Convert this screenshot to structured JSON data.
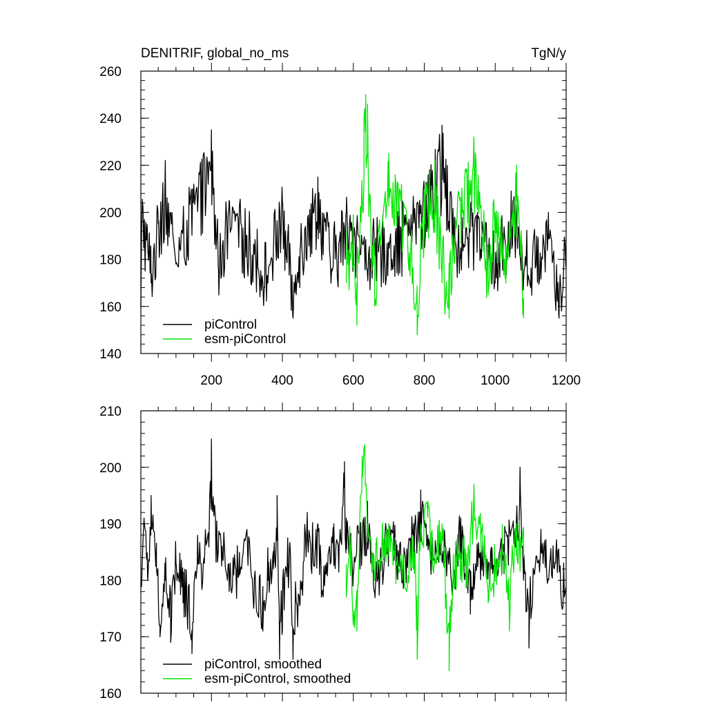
{
  "colors": {
    "picontrol": "#000000",
    "esm_picontrol": "#00e600"
  },
  "chart_data": [
    {
      "type": "line",
      "title": "DENITRIF, global_no_ms",
      "units": "TgN/y",
      "xlim": [
        1,
        1200
      ],
      "ylim": [
        140,
        260
      ],
      "x_ticks": [
        200,
        400,
        600,
        800,
        1000,
        1200
      ],
      "y_ticks": [
        140,
        160,
        180,
        200,
        220,
        240,
        260
      ],
      "legend_position": "bottom-left",
      "series": [
        {
          "name": "piControl",
          "color": "#000000",
          "x_range": [
            1,
            1200
          ],
          "mean": 182,
          "anchors": [
            [
              1,
              160
            ],
            [
              5,
              205
            ],
            [
              30,
              170
            ],
            [
              50,
              195
            ],
            [
              70,
              222
            ],
            [
              100,
              178
            ],
            [
              150,
              212
            ],
            [
              200,
              235
            ],
            [
              220,
              175
            ],
            [
              250,
              205
            ],
            [
              300,
              190
            ],
            [
              350,
              168
            ],
            [
              400,
              205
            ],
            [
              430,
              155
            ],
            [
              450,
              185
            ],
            [
              500,
              215
            ],
            [
              540,
              175
            ],
            [
              580,
              200
            ],
            [
              650,
              180
            ],
            [
              750,
              195
            ],
            [
              800,
              210
            ],
            [
              850,
              237
            ],
            [
              900,
              180
            ],
            [
              950,
              200
            ],
            [
              1000,
              170
            ],
            [
              1050,
              205
            ],
            [
              1100,
              168
            ],
            [
              1150,
              200
            ],
            [
              1180,
              155
            ],
            [
              1200,
              178
            ]
          ]
        },
        {
          "name": "esm-piControl",
          "color": "#00e600",
          "x_range": [
            580,
            1080
          ],
          "mean": 185,
          "anchors": [
            [
              580,
              170
            ],
            [
              600,
              195
            ],
            [
              610,
              152
            ],
            [
              630,
              240
            ],
            [
              635,
              250
            ],
            [
              640,
              246
            ],
            [
              660,
              160
            ],
            [
              700,
              225
            ],
            [
              750,
              200
            ],
            [
              780,
              148
            ],
            [
              800,
              210
            ],
            [
              830,
              222
            ],
            [
              850,
              170
            ],
            [
              870,
              155
            ],
            [
              900,
              205
            ],
            [
              940,
              232
            ],
            [
              980,
              165
            ],
            [
              1000,
              200
            ],
            [
              1030,
              170
            ],
            [
              1060,
              220
            ],
            [
              1080,
              155
            ]
          ]
        }
      ]
    },
    {
      "type": "line",
      "title": "",
      "units": "",
      "xlim": [
        1,
        1200
      ],
      "ylim": [
        160,
        210
      ],
      "x_ticks": [
        200,
        400,
        600,
        800,
        1000,
        1200
      ],
      "y_ticks": [
        160,
        170,
        180,
        190,
        200,
        210
      ],
      "legend_position": "bottom-left",
      "series": [
        {
          "name": "piControl, smoothed",
          "color": "#000000",
          "x_range": [
            1,
            1200
          ],
          "mean": 183,
          "anchors": [
            [
              1,
              179
            ],
            [
              10,
              191
            ],
            [
              20,
              180
            ],
            [
              30,
              195
            ],
            [
              45,
              182
            ],
            [
              55,
              170
            ],
            [
              70,
              180
            ],
            [
              85,
              169
            ],
            [
              100,
              183
            ],
            [
              120,
              176
            ],
            [
              145,
              167
            ],
            [
              160,
              183
            ],
            [
              180,
              183
            ],
            [
              195,
              195
            ],
            [
              200,
              205
            ],
            [
              210,
              192
            ],
            [
              230,
              186
            ],
            [
              250,
              178
            ],
            [
              280,
              181
            ],
            [
              300,
              189
            ],
            [
              320,
              176
            ],
            [
              345,
              171
            ],
            [
              360,
              180
            ],
            [
              375,
              182
            ],
            [
              385,
              195
            ],
            [
              392,
              166
            ],
            [
              400,
              171
            ],
            [
              420,
              186
            ],
            [
              430,
              166
            ],
            [
              450,
              176
            ],
            [
              470,
              192
            ],
            [
              480,
              186
            ],
            [
              500,
              190
            ],
            [
              510,
              177
            ],
            [
              530,
              185
            ],
            [
              545,
              190
            ],
            [
              560,
              186
            ],
            [
              575,
              201
            ],
            [
              580,
              191
            ],
            [
              600,
              181
            ],
            [
              620,
              190
            ],
            [
              640,
              194
            ],
            [
              660,
              178
            ],
            [
              680,
              183
            ],
            [
              700,
              190
            ],
            [
              720,
              187
            ],
            [
              740,
              182
            ],
            [
              770,
              190
            ],
            [
              790,
              196
            ],
            [
              810,
              188
            ],
            [
              830,
              183
            ],
            [
              860,
              186
            ],
            [
              880,
              179
            ],
            [
              900,
              190
            ],
            [
              930,
              174
            ],
            [
              960,
              186
            ],
            [
              990,
              182
            ],
            [
              1020,
              186
            ],
            [
              1050,
              190
            ],
            [
              1070,
              200
            ],
            [
              1080,
              180
            ],
            [
              1095,
              168
            ],
            [
              1110,
              181
            ],
            [
              1130,
              185
            ],
            [
              1150,
              180
            ],
            [
              1170,
              183
            ],
            [
              1190,
              175
            ],
            [
              1200,
              179
            ]
          ]
        },
        {
          "name": "esm-piControl, smoothed",
          "color": "#00e600",
          "x_range": [
            580,
            1080
          ],
          "mean": 185,
          "anchors": [
            [
              580,
              177
            ],
            [
              590,
              188
            ],
            [
              600,
              172
            ],
            [
              610,
              171
            ],
            [
              620,
              195
            ],
            [
              625,
              202
            ],
            [
              632,
              204
            ],
            [
              640,
              190
            ],
            [
              660,
              180
            ],
            [
              680,
              185
            ],
            [
              700,
              190
            ],
            [
              720,
              183
            ],
            [
              750,
              178
            ],
            [
              770,
              185
            ],
            [
              780,
              166
            ],
            [
              790,
              190
            ],
            [
              810,
              194
            ],
            [
              830,
              183
            ],
            [
              850,
              190
            ],
            [
              860,
              175
            ],
            [
              870,
              164
            ],
            [
              880,
              177
            ],
            [
              900,
              185
            ],
            [
              920,
              180
            ],
            [
              940,
              197
            ],
            [
              960,
              188
            ],
            [
              980,
              176
            ],
            [
              1000,
              181
            ],
            [
              1020,
              186
            ],
            [
              1040,
              171
            ],
            [
              1060,
              190
            ],
            [
              1080,
              184
            ]
          ]
        }
      ]
    }
  ]
}
